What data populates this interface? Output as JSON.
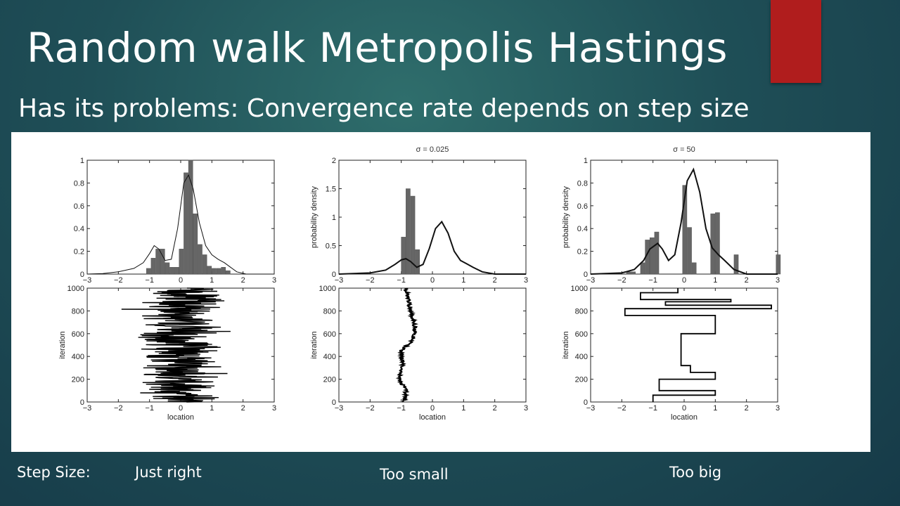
{
  "slide": {
    "title": "Random walk Metropolis Hastings",
    "subtitle": "Has its problems: Convergence rate depends on step size",
    "accent_color": "#b01d1d"
  },
  "captions": {
    "label": "Step Size:",
    "just_right": "Just right",
    "too_small": "Too small",
    "too_big": "Too big"
  },
  "chart_data": [
    {
      "type": "bar",
      "title": "",
      "xlabel": "",
      "ylabel": "",
      "xlim": [
        -3,
        3
      ],
      "ylim": [
        0,
        1
      ],
      "xticks": [
        -3,
        -2,
        -1,
        0,
        1,
        2,
        3
      ],
      "yticks": [
        0,
        0.2,
        0.4,
        0.6,
        0.8,
        1
      ],
      "bin_width": 0.15,
      "bins": [
        {
          "x": -1.1,
          "y": 0.05
        },
        {
          "x": -0.95,
          "y": 0.14
        },
        {
          "x": -0.8,
          "y": 0.22
        },
        {
          "x": -0.65,
          "y": 0.22
        },
        {
          "x": -0.5,
          "y": 0.1
        },
        {
          "x": -0.35,
          "y": 0.06
        },
        {
          "x": -0.2,
          "y": 0.06
        },
        {
          "x": -0.05,
          "y": 0.22
        },
        {
          "x": 0.1,
          "y": 0.89
        },
        {
          "x": 0.25,
          "y": 1.0
        },
        {
          "x": 0.4,
          "y": 0.53
        },
        {
          "x": 0.55,
          "y": 0.26
        },
        {
          "x": 0.7,
          "y": 0.17
        },
        {
          "x": 0.85,
          "y": 0.07
        },
        {
          "x": 1.0,
          "y": 0.05
        },
        {
          "x": 1.15,
          "y": 0.05
        },
        {
          "x": 1.3,
          "y": 0.06
        },
        {
          "x": 1.45,
          "y": 0.03
        }
      ],
      "density_curve": [
        [
          -3,
          0.0
        ],
        [
          -2.5,
          0.005
        ],
        [
          -2,
          0.02
        ],
        [
          -1.5,
          0.05
        ],
        [
          -1.2,
          0.1
        ],
        [
          -1,
          0.18
        ],
        [
          -0.85,
          0.25
        ],
        [
          -0.7,
          0.22
        ],
        [
          -0.5,
          0.12
        ],
        [
          -0.3,
          0.13
        ],
        [
          -0.1,
          0.4
        ],
        [
          0.1,
          0.8
        ],
        [
          0.25,
          0.87
        ],
        [
          0.4,
          0.75
        ],
        [
          0.6,
          0.45
        ],
        [
          0.8,
          0.25
        ],
        [
          1.0,
          0.17
        ],
        [
          1.2,
          0.13
        ],
        [
          1.4,
          0.1
        ],
        [
          1.6,
          0.06
        ],
        [
          1.8,
          0.02
        ],
        [
          2.1,
          0.0
        ],
        [
          3,
          0
        ]
      ]
    },
    {
      "type": "bar",
      "title": "σ = 0.025",
      "xlabel": "",
      "ylabel": "probability density",
      "xlim": [
        -3,
        3
      ],
      "ylim": [
        0,
        2
      ],
      "xticks": [
        -3,
        -2,
        -1,
        0,
        1,
        2,
        3
      ],
      "yticks": [
        0,
        0.5,
        1,
        1.5,
        2
      ],
      "bin_width": 0.15,
      "bins": [
        {
          "x": -1.0,
          "y": 0.65
        },
        {
          "x": -0.85,
          "y": 1.5
        },
        {
          "x": -0.7,
          "y": 1.37
        },
        {
          "x": -0.55,
          "y": 0.43
        }
      ],
      "density_curve": [
        [
          -3,
          0.0
        ],
        [
          -2,
          0.02
        ],
        [
          -1.5,
          0.07
        ],
        [
          -1.2,
          0.17
        ],
        [
          -1.0,
          0.25
        ],
        [
          -0.85,
          0.27
        ],
        [
          -0.7,
          0.22
        ],
        [
          -0.5,
          0.12
        ],
        [
          -0.3,
          0.17
        ],
        [
          -0.1,
          0.45
        ],
        [
          0.1,
          0.8
        ],
        [
          0.3,
          0.92
        ],
        [
          0.5,
          0.72
        ],
        [
          0.7,
          0.4
        ],
        [
          0.9,
          0.24
        ],
        [
          1.1,
          0.18
        ],
        [
          1.3,
          0.12
        ],
        [
          1.6,
          0.04
        ],
        [
          2.0,
          0.0
        ],
        [
          3,
          0
        ]
      ]
    },
    {
      "type": "bar",
      "title": "σ = 50",
      "xlabel": "",
      "ylabel": "probability density",
      "xlim": [
        -3,
        3
      ],
      "ylim": [
        0,
        1
      ],
      "xticks": [
        -3,
        -2,
        -1,
        0,
        1,
        2,
        3
      ],
      "yticks": [
        0,
        0.2,
        0.4,
        0.6,
        0.8,
        1
      ],
      "bin_width": 0.15,
      "bins": [
        {
          "x": -1.85,
          "y": 0.02
        },
        {
          "x": -1.7,
          "y": 0.02
        },
        {
          "x": -1.4,
          "y": 0.1
        },
        {
          "x": -1.25,
          "y": 0.3
        },
        {
          "x": -1.1,
          "y": 0.32
        },
        {
          "x": -0.95,
          "y": 0.37
        },
        {
          "x": -0.05,
          "y": 0.78
        },
        {
          "x": 0.1,
          "y": 0.41
        },
        {
          "x": 0.25,
          "y": 0.1
        },
        {
          "x": 0.85,
          "y": 0.53
        },
        {
          "x": 1.0,
          "y": 0.54
        },
        {
          "x": 1.6,
          "y": 0.17
        },
        {
          "x": 2.95,
          "y": 0.17
        }
      ],
      "density_curve": [
        [
          -3,
          0.0
        ],
        [
          -2,
          0.01
        ],
        [
          -1.6,
          0.04
        ],
        [
          -1.3,
          0.12
        ],
        [
          -1.1,
          0.22
        ],
        [
          -0.85,
          0.27
        ],
        [
          -0.7,
          0.22
        ],
        [
          -0.5,
          0.12
        ],
        [
          -0.3,
          0.17
        ],
        [
          -0.1,
          0.45
        ],
        [
          0.1,
          0.82
        ],
        [
          0.3,
          0.92
        ],
        [
          0.5,
          0.72
        ],
        [
          0.7,
          0.4
        ],
        [
          0.9,
          0.23
        ],
        [
          1.1,
          0.17
        ],
        [
          1.3,
          0.12
        ],
        [
          1.6,
          0.04
        ],
        [
          2.0,
          0.0
        ],
        [
          3,
          0
        ]
      ]
    },
    {
      "type": "line",
      "title": "",
      "xlabel": "location",
      "ylabel": "iteration",
      "xlim": [
        -3,
        3
      ],
      "ylim": [
        0,
        1000
      ],
      "xticks": [
        -3,
        -2,
        -1,
        0,
        1,
        2,
        3
      ],
      "yticks": [
        0,
        200,
        400,
        600,
        800,
        1000
      ],
      "trace_style": "fast-mixing jagged walk centered near 0, range about -2 to 1.7",
      "trace_keypoints": [
        [
          0.2,
          0
        ],
        [
          -1.3,
          80
        ],
        [
          1.5,
          250
        ],
        [
          -1.2,
          300
        ],
        [
          -0.4,
          450
        ],
        [
          1.6,
          620
        ],
        [
          -1.9,
          815
        ],
        [
          1.3,
          900
        ],
        [
          0.2,
          1000
        ]
      ]
    },
    {
      "type": "line",
      "title": "",
      "xlabel": "location",
      "ylabel": "iteration",
      "xlim": [
        -3,
        3
      ],
      "ylim": [
        0,
        1000
      ],
      "xticks": [
        -3,
        -2,
        -1,
        0,
        1,
        2,
        3
      ],
      "yticks": [
        0,
        200,
        400,
        600,
        800,
        1000
      ],
      "trace_style": "slow drifting walk, range about -1.1 to -0.5",
      "trace_keypoints": [
        [
          -0.9,
          0
        ],
        [
          -0.85,
          100
        ],
        [
          -1.05,
          200
        ],
        [
          -0.95,
          350
        ],
        [
          -1.0,
          450
        ],
        [
          -0.6,
          550
        ],
        [
          -0.55,
          650
        ],
        [
          -0.7,
          800
        ],
        [
          -0.85,
          1000
        ]
      ]
    },
    {
      "type": "line",
      "title": "",
      "xlabel": "location",
      "ylabel": "iteration",
      "xlim": [
        -3,
        3
      ],
      "ylim": [
        0,
        1000
      ],
      "xticks": [
        -3,
        -2,
        -1,
        0,
        1,
        2,
        3
      ],
      "yticks": [
        0,
        200,
        400,
        600,
        800,
        1000
      ],
      "trace_style": "step-like walk with long plateaus (rare accepted moves)",
      "trace_steps": [
        [
          -1.0,
          0
        ],
        [
          -1.0,
          60
        ],
        [
          1.0,
          60
        ],
        [
          1.0,
          100
        ],
        [
          -0.8,
          100
        ],
        [
          -0.8,
          200
        ],
        [
          1.0,
          200
        ],
        [
          1.0,
          260
        ],
        [
          0.2,
          260
        ],
        [
          0.2,
          320
        ],
        [
          -0.1,
          320
        ],
        [
          -0.1,
          600
        ],
        [
          1.0,
          600
        ],
        [
          1.0,
          760
        ],
        [
          -1.9,
          760
        ],
        [
          -1.9,
          820
        ],
        [
          2.8,
          820
        ],
        [
          2.8,
          850
        ],
        [
          -0.6,
          850
        ],
        [
          -0.6,
          880
        ],
        [
          1.5,
          880
        ],
        [
          1.5,
          900
        ],
        [
          -1.4,
          900
        ],
        [
          -1.4,
          960
        ],
        [
          -0.2,
          960
        ],
        [
          -0.2,
          1000
        ]
      ]
    }
  ]
}
